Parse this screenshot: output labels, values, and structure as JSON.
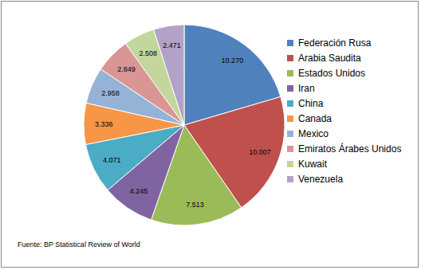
{
  "chart_data": {
    "type": "pie",
    "categories": [
      "Federación Rusa",
      "Arabia Saudita",
      "Estados Unidos",
      "Iran",
      "China",
      "Canada",
      "Mexico",
      "Emiratos Árabes Unidos",
      "Kuwait",
      "Venezuela"
    ],
    "values": [
      10.27,
      10.007,
      7.513,
      4.245,
      4.071,
      3.336,
      2.958,
      2.849,
      2.508,
      2.471
    ],
    "value_labels": [
      "10.270",
      "10.007",
      "7.513",
      "4.245",
      "4.071",
      "3.336",
      "2.958",
      "2.849",
      "2.508",
      "2.471"
    ],
    "colors": [
      "#4F81BD",
      "#C0504D",
      "#9BBB59",
      "#8064A2",
      "#4BACC6",
      "#F79646",
      "#95B3D7",
      "#D99694",
      "#C3D69B",
      "#B3A2C7"
    ],
    "data_labels": true,
    "legend": "right",
    "annotations": [
      "Fuente: BP Statistical Review of World"
    ]
  }
}
